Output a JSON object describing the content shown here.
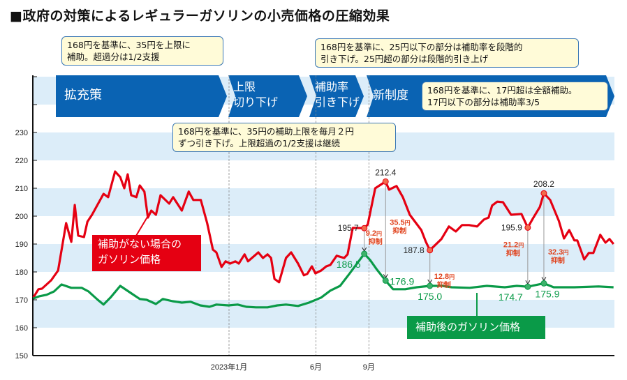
{
  "chart_data": {
    "type": "line",
    "title": "■政府の対策によるレギュラーガソリンの小売価格の圧縮効果",
    "ylim": [
      150,
      250
    ],
    "yticks": [
      150,
      160,
      170,
      180,
      190,
      200,
      210,
      220,
      230
    ],
    "xticks": [
      {
        "label": "2023年1月",
        "date": "2023-01-01"
      },
      {
        "label": "6月",
        "date": "2023-06-01"
      },
      {
        "label": "9月",
        "date": "2023-09-01"
      }
    ],
    "grid": "alternating horizontal bands",
    "colors": {
      "without_subsidy": "#e50012",
      "with_subsidy": "#0a9a48",
      "phase": "#0a63b3",
      "band": "#dcedf9"
    },
    "series": [
      {
        "name": "補助がない場合のガソリン価格",
        "points": [
          [
            "2022-01-26",
            170.8
          ],
          [
            "2022-02-04",
            173.8
          ],
          [
            "2022-02-10",
            174
          ],
          [
            "2022-02-26",
            177
          ],
          [
            "2022-03-10",
            180.5
          ],
          [
            "2022-03-24",
            197.5
          ],
          [
            "2022-04-02",
            190.8
          ],
          [
            "2022-04-08",
            204
          ],
          [
            "2022-04-14",
            193
          ],
          [
            "2022-04-24",
            192.5
          ],
          [
            "2022-04-30",
            198
          ],
          [
            "2022-05-08",
            200.5
          ],
          [
            "2022-05-28",
            208
          ],
          [
            "2022-06-05",
            206.8
          ],
          [
            "2022-06-17",
            216
          ],
          [
            "2022-06-26",
            214
          ],
          [
            "2022-07-03",
            210
          ],
          [
            "2022-07-09",
            215
          ],
          [
            "2022-07-15",
            207.5
          ],
          [
            "2022-07-24",
            206.8
          ],
          [
            "2022-07-30",
            211
          ],
          [
            "2022-08-07",
            208.8
          ],
          [
            "2022-08-13",
            199.5
          ],
          [
            "2022-08-19",
            202
          ],
          [
            "2022-08-27",
            200.5
          ],
          [
            "2022-09-04",
            207.5
          ],
          [
            "2022-09-19",
            204.5
          ],
          [
            "2022-09-26",
            206.8
          ],
          [
            "2022-10-11",
            202
          ],
          [
            "2022-10-23",
            208.8
          ],
          [
            "2022-10-31",
            205.8
          ],
          [
            "2022-11-13",
            205.8
          ],
          [
            "2022-11-24",
            197.5
          ],
          [
            "2022-12-04",
            188
          ],
          [
            "2022-12-10",
            187
          ],
          [
            "2022-12-19",
            181.8
          ],
          [
            "2022-12-26",
            183.8
          ],
          [
            "2023-01-03",
            183
          ],
          [
            "2023-01-12",
            183.8
          ],
          [
            "2023-01-18",
            183
          ],
          [
            "2023-01-28",
            186.3
          ],
          [
            "2023-02-03",
            183.8
          ],
          [
            "2023-02-21",
            187
          ],
          [
            "2023-03-01",
            185
          ],
          [
            "2023-03-09",
            186.3
          ],
          [
            "2023-03-15",
            185
          ],
          [
            "2023-03-21",
            177.5
          ],
          [
            "2023-03-29",
            176.3
          ],
          [
            "2023-04-10",
            185
          ],
          [
            "2023-04-19",
            187
          ],
          [
            "2023-05-01",
            183
          ],
          [
            "2023-05-11",
            178.8
          ],
          [
            "2023-05-17",
            179.3
          ],
          [
            "2023-05-25",
            182
          ],
          [
            "2023-05-31",
            179.5
          ],
          [
            "2023-06-10",
            180.5
          ],
          [
            "2023-06-19",
            182
          ],
          [
            "2023-06-26",
            182.5
          ],
          [
            "2023-07-07",
            185.8
          ],
          [
            "2023-07-20",
            185
          ],
          [
            "2023-07-26",
            186.3
          ],
          [
            "2023-08-04",
            195.8
          ],
          [
            "2023-08-24",
            195.7
          ],
          [
            "2023-08-30",
            197
          ],
          [
            "2023-09-12",
            210
          ],
          [
            "2023-09-30",
            212.4
          ],
          [
            "2023-10-06",
            209.5
          ],
          [
            "2023-10-19",
            210.8
          ],
          [
            "2023-10-30",
            206.8
          ],
          [
            "2023-11-11",
            200.5
          ],
          [
            "2023-12-01",
            195
          ],
          [
            "2023-12-09",
            190.8
          ],
          [
            "2023-12-16",
            187.8
          ],
          [
            "2024-01-05",
            191.8
          ],
          [
            "2024-01-18",
            196.3
          ],
          [
            "2024-01-30",
            194.5
          ],
          [
            "2024-02-10",
            196.8
          ],
          [
            "2024-02-22",
            196.8
          ],
          [
            "2024-03-07",
            196.3
          ],
          [
            "2024-03-19",
            198.8
          ],
          [
            "2024-03-27",
            199.5
          ],
          [
            "2024-04-02",
            203.8
          ],
          [
            "2024-04-11",
            205.2
          ],
          [
            "2024-04-21",
            205
          ],
          [
            "2024-05-05",
            200.5
          ],
          [
            "2024-05-23",
            200.8
          ],
          [
            "2024-06-03",
            195.9
          ],
          [
            "2024-06-12",
            199.2
          ],
          [
            "2024-06-24",
            203.3
          ],
          [
            "2024-07-01",
            208.2
          ],
          [
            "2024-07-12",
            205.8
          ],
          [
            "2024-07-27",
            198.3
          ],
          [
            "2024-08-05",
            192
          ],
          [
            "2024-08-14",
            195
          ],
          [
            "2024-08-23",
            191.3
          ],
          [
            "2024-08-28",
            191.3
          ],
          [
            "2024-09-09",
            184.5
          ],
          [
            "2024-09-17",
            186.8
          ],
          [
            "2024-09-25",
            186.8
          ],
          [
            "2024-10-07",
            193.3
          ],
          [
            "2024-10-16",
            190.5
          ],
          [
            "2024-10-23",
            191.8
          ],
          [
            "2024-10-30",
            190
          ]
        ]
      },
      {
        "name": "補助後のガソリン価格",
        "points": [
          [
            "2022-01-26",
            170.5
          ],
          [
            "2022-02-06",
            171.3
          ],
          [
            "2022-02-18",
            171.8
          ],
          [
            "2022-03-03",
            173
          ],
          [
            "2022-03-16",
            175.5
          ],
          [
            "2022-04-02",
            174.3
          ],
          [
            "2022-04-20",
            174.3
          ],
          [
            "2022-05-02",
            173
          ],
          [
            "2022-05-18",
            170
          ],
          [
            "2022-05-28",
            168.3
          ],
          [
            "2022-06-09",
            170.8
          ],
          [
            "2022-06-26",
            175
          ],
          [
            "2022-07-14",
            172.5
          ],
          [
            "2022-07-30",
            170.3
          ],
          [
            "2022-08-11",
            170
          ],
          [
            "2022-08-27",
            168.5
          ],
          [
            "2022-09-08",
            170.3
          ],
          [
            "2022-09-25",
            169.5
          ],
          [
            "2022-10-11",
            169
          ],
          [
            "2022-10-26",
            169.3
          ],
          [
            "2022-11-12",
            168
          ],
          [
            "2022-11-28",
            167.5
          ],
          [
            "2022-12-10",
            168.3
          ],
          [
            "2022-12-31",
            168
          ],
          [
            "2023-01-16",
            168.3
          ],
          [
            "2023-01-31",
            167.5
          ],
          [
            "2023-02-17",
            167.3
          ],
          [
            "2023-03-09",
            167.3
          ],
          [
            "2023-03-26",
            168
          ],
          [
            "2023-04-10",
            168.3
          ],
          [
            "2023-05-01",
            167.8
          ],
          [
            "2023-05-20",
            169
          ],
          [
            "2023-06-10",
            170.8
          ],
          [
            "2023-06-26",
            173.3
          ],
          [
            "2023-07-13",
            175
          ],
          [
            "2023-07-29",
            179.3
          ],
          [
            "2023-08-24",
            186.5
          ],
          [
            "2023-09-03",
            184.3
          ],
          [
            "2023-09-15",
            180.8
          ],
          [
            "2023-09-30",
            176.9
          ],
          [
            "2023-10-13",
            173.8
          ],
          [
            "2023-11-03",
            173.8
          ],
          [
            "2023-11-23",
            174.5
          ],
          [
            "2023-12-16",
            175.0
          ],
          [
            "2024-01-06",
            175
          ],
          [
            "2024-01-23",
            174.5
          ],
          [
            "2024-02-23",
            174.3
          ],
          [
            "2024-03-24",
            175
          ],
          [
            "2024-04-24",
            174.5
          ],
          [
            "2024-05-15",
            175
          ],
          [
            "2024-06-03",
            174.7
          ],
          [
            "2024-07-01",
            175.9
          ],
          [
            "2024-07-18",
            174.5
          ],
          [
            "2024-08-23",
            174.5
          ],
          [
            "2024-10-04",
            174.8
          ],
          [
            "2024-10-30",
            174.5
          ]
        ]
      }
    ],
    "highlights": [
      {
        "date": "2023-08-24",
        "before": "195.7",
        "after": "186.5",
        "suppressed": "9.2",
        "unit": "円",
        "note": "抑制"
      },
      {
        "date": "2023-09-30",
        "before": "212.4",
        "after": "176.9",
        "suppressed": "35.5",
        "unit": "円",
        "note": "抑制"
      },
      {
        "date": "2023-12-16",
        "before": "187.8",
        "after": "175.0",
        "suppressed": "12.8",
        "unit": "円",
        "note": "抑制"
      },
      {
        "date": "2024-06-03",
        "before": "195.9",
        "after": "174.7",
        "suppressed": "21.2",
        "unit": "円",
        "note": "抑制"
      },
      {
        "date": "2024-07-01",
        "before": "208.2",
        "after": "175.9",
        "suppressed": "32.3",
        "unit": "円",
        "note": "抑制"
      }
    ],
    "series_labels": {
      "without_subsidy": [
        "補助がない場合の",
        "ガソリン価格"
      ],
      "with_subsidy": "補助後のガソリン価格"
    },
    "phases": [
      {
        "lines": [
          "拡充策"
        ]
      },
      {
        "lines": [
          "上限",
          "切り下げ"
        ]
      },
      {
        "lines": [
          "補助率",
          "引き下げ"
        ]
      },
      {
        "lines": [
          "新制度"
        ]
      }
    ],
    "callouts": [
      [
        "168円を基準に、35円を上限に",
        "補助。超過分は1/2支援"
      ],
      [
        "168円を基準に、35円の補助上限を毎月２円",
        "ずつ引き下げ。上限超過の1/2支援は継続"
      ],
      [
        "168円を基準に、25円以下の部分は補助率を段階的",
        "引き下げ。25円超の部分は段階的引き上げ"
      ],
      [
        "168円を基準に、17円超は全額補助。",
        "17円以下の部分は補助率3/5"
      ]
    ]
  }
}
